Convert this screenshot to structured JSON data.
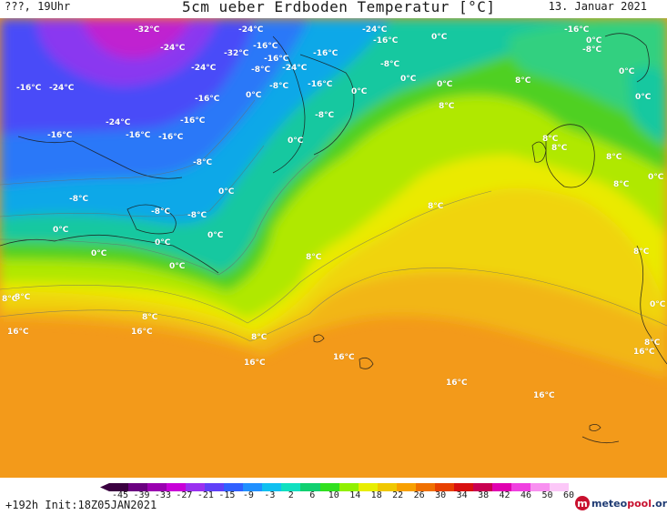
{
  "header": {
    "time_label": "???, 19Uhr",
    "title": "5cm ueber Erdboden Temperatur [°C]",
    "date": "13. Januar 2021"
  },
  "footer": {
    "init": "+192h  Init:18Z05JAN2021",
    "logo": {
      "brand": "meteo",
      "accent": "pool",
      "tld": ".org",
      "icon": "m-logo-icon"
    }
  },
  "legend": {
    "ticks": [
      "-45",
      "-39",
      "-33",
      "-27",
      "-21",
      "-15",
      "-9",
      "-3",
      "2",
      "6",
      "10",
      "14",
      "18",
      "22",
      "26",
      "30",
      "34",
      "38",
      "42",
      "46",
      "50",
      "60"
    ],
    "colors": [
      "#3a0040",
      "#6a0080",
      "#9a00b0",
      "#c800d8",
      "#9a30f0",
      "#6040f8",
      "#3060ff",
      "#2090ff",
      "#10c0f0",
      "#10e0c0",
      "#10d070",
      "#30e020",
      "#90f000",
      "#e8ee00",
      "#f0c800",
      "#f8a000",
      "#f07000",
      "#e84000",
      "#d81010",
      "#c80050",
      "#e000b0",
      "#f040e0",
      "#f890f0",
      "#fcc8f8"
    ]
  },
  "map": {
    "labels": [
      {
        "text": "-32°C",
        "x": 148,
        "y": -4
      },
      {
        "text": "-24°C",
        "x": 262,
        "y": -4
      },
      {
        "text": "-24°C",
        "x": 398,
        "y": -4
      },
      {
        "text": "-16°C",
        "x": 620,
        "y": -4
      },
      {
        "text": "-24°C",
        "x": 176,
        "y": 16
      },
      {
        "text": "-32°C",
        "x": 246,
        "y": 22
      },
      {
        "text": "-16°C",
        "x": 278,
        "y": 14
      },
      {
        "text": "-16°C",
        "x": 410,
        "y": 8
      },
      {
        "text": "0°C",
        "x": 474,
        "y": 4
      },
      {
        "text": "0°C",
        "x": 644,
        "y": 8
      },
      {
        "text": "-8°C",
        "x": 640,
        "y": 18
      },
      {
        "text": "-16°C",
        "x": 290,
        "y": 28
      },
      {
        "text": "-16°C",
        "x": 344,
        "y": 22
      },
      {
        "text": "-24°C",
        "x": 210,
        "y": 38
      },
      {
        "text": "-8°C",
        "x": 276,
        "y": 40
      },
      {
        "text": "-24°C",
        "x": 310,
        "y": 38
      },
      {
        "text": "-8°C",
        "x": 418,
        "y": 34
      },
      {
        "text": "0°C",
        "x": 680,
        "y": 42
      },
      {
        "text": "-16°C",
        "x": 18,
        "y": 60
      },
      {
        "text": "-24°C",
        "x": 54,
        "y": 60
      },
      {
        "text": "-8°C",
        "x": 296,
        "y": 58
      },
      {
        "text": "-16°C",
        "x": 338,
        "y": 56
      },
      {
        "text": "0°C",
        "x": 440,
        "y": 50
      },
      {
        "text": "0°C",
        "x": 480,
        "y": 56
      },
      {
        "text": "8°C",
        "x": 566,
        "y": 52
      },
      {
        "text": "-16°C",
        "x": 214,
        "y": 72
      },
      {
        "text": "0°C",
        "x": 270,
        "y": 68
      },
      {
        "text": "0°C",
        "x": 386,
        "y": 64
      },
      {
        "text": "0°C",
        "x": 698,
        "y": 70
      },
      {
        "text": "8°C",
        "x": 482,
        "y": 80
      },
      {
        "text": "-24°C",
        "x": 116,
        "y": 98
      },
      {
        "text": "-16°C",
        "x": 198,
        "y": 96
      },
      {
        "text": "-8°C",
        "x": 346,
        "y": 90
      },
      {
        "text": "-16°C",
        "x": 52,
        "y": 112
      },
      {
        "text": "-16°C",
        "x": 138,
        "y": 112
      },
      {
        "text": "-16°C",
        "x": 174,
        "y": 114
      },
      {
        "text": "0°C",
        "x": 316,
        "y": 118
      },
      {
        "text": "8°C",
        "x": 596,
        "y": 116
      },
      {
        "text": "8°C",
        "x": 606,
        "y": 126
      },
      {
        "text": "8°C",
        "x": 666,
        "y": 136
      },
      {
        "text": "-8°C",
        "x": 212,
        "y": 142
      },
      {
        "text": "0°C",
        "x": 712,
        "y": 158
      },
      {
        "text": "8°C",
        "x": 674,
        "y": 166
      },
      {
        "text": "0°C",
        "x": 240,
        "y": 174
      },
      {
        "text": "-8°C",
        "x": 76,
        "y": 182
      },
      {
        "text": "8°C",
        "x": 470,
        "y": 190
      },
      {
        "text": "-8°C",
        "x": 166,
        "y": 196
      },
      {
        "text": "-8°C",
        "x": 206,
        "y": 200
      },
      {
        "text": "0°C",
        "x": 58,
        "y": 216
      },
      {
        "text": "0°C",
        "x": 228,
        "y": 222
      },
      {
        "text": "0°C",
        "x": 170,
        "y": 230
      },
      {
        "text": "0°C",
        "x": 100,
        "y": 242
      },
      {
        "text": "8°C",
        "x": 336,
        "y": 246
      },
      {
        "text": "8°C",
        "x": 696,
        "y": 240
      },
      {
        "text": "0°C",
        "x": 186,
        "y": 256
      },
      {
        "text": "8°C",
        "x": 2,
        "y": 292
      },
      {
        "text": "8°C",
        "x": 16,
        "y": 290
      },
      {
        "text": "0°C",
        "x": 714,
        "y": 298
      },
      {
        "text": "8°C",
        "x": 156,
        "y": 312
      },
      {
        "text": "16°C",
        "x": 8,
        "y": 328
      },
      {
        "text": "16°C",
        "x": 144,
        "y": 328
      },
      {
        "text": "8°C",
        "x": 276,
        "y": 334
      },
      {
        "text": "8°C",
        "x": 708,
        "y": 340
      },
      {
        "text": "16°C",
        "x": 696,
        "y": 350
      },
      {
        "text": "16°C",
        "x": 268,
        "y": 362
      },
      {
        "text": "16°C",
        "x": 366,
        "y": 356
      },
      {
        "text": "16°C",
        "x": 490,
        "y": 384
      },
      {
        "text": "16°C",
        "x": 586,
        "y": 398
      }
    ]
  }
}
